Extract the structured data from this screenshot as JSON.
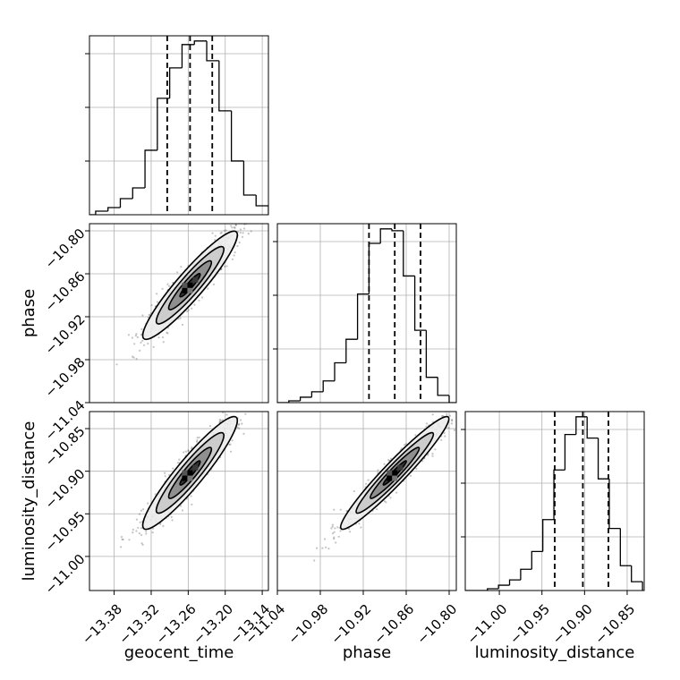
{
  "chart_data": {
    "type": "corner",
    "parameters": [
      "geocent_time",
      "phase",
      "luminosity_distance"
    ],
    "panels": [
      {
        "type": "histogram",
        "param": "geocent_time",
        "xlim": [
          -13.42,
          -13.13
        ],
        "x_ticks": [
          "-13.38",
          "-13.32",
          "-13.26",
          "-13.20",
          "-13.14"
        ],
        "x_tick_values": [
          -13.38,
          -13.32,
          -13.26,
          -13.2,
          -13.14
        ],
        "bin_edges": [
          -13.43,
          -13.41,
          -13.39,
          -13.37,
          -13.35,
          -13.33,
          -13.31,
          -13.29,
          -13.27,
          -13.25,
          -13.23,
          -13.21,
          -13.19,
          -13.17,
          -13.15,
          -13.13
        ],
        "counts": [
          0,
          2,
          4,
          9,
          15,
          36,
          65,
          82,
          95,
          97,
          86,
          58,
          30,
          11,
          5
        ],
        "quantiles": [
          -13.294,
          -13.257,
          -13.221
        ],
        "grid": true
      },
      {
        "type": "histogram",
        "param": "phase",
        "xlim": [
          -11.04,
          -10.79
        ],
        "x_ticks": [
          "-11.04",
          "-10.98",
          "-10.92",
          "-10.86",
          "-10.80"
        ],
        "x_tick_values": [
          -11.04,
          -10.98,
          -10.92,
          -10.86,
          -10.8
        ],
        "bin_edges": [
          -11.04,
          -11.024,
          -11.008,
          -10.992,
          -10.976,
          -10.96,
          -10.944,
          -10.928,
          -10.912,
          -10.896,
          -10.88,
          -10.864,
          -10.848,
          -10.832,
          -10.816,
          -10.8,
          -10.79
        ],
        "counts": [
          0,
          1,
          3,
          6,
          12,
          22,
          35,
          60,
          88,
          96,
          95,
          70,
          40,
          14,
          4,
          0
        ],
        "quantiles": [
          -10.912,
          -10.876,
          -10.84
        ],
        "grid": true
      },
      {
        "type": "histogram",
        "param": "luminosity_distance",
        "xlim": [
          -11.04,
          -10.83
        ],
        "x_ticks": [
          "-11.00",
          "-10.95",
          "-10.90",
          "-10.85"
        ],
        "x_tick_values": [
          -11.0,
          -10.95,
          -10.9,
          -10.85
        ],
        "bin_edges": [
          -11.04,
          -11.027,
          -11.014,
          -11.001,
          -10.988,
          -10.975,
          -10.962,
          -10.949,
          -10.936,
          -10.923,
          -10.91,
          -10.897,
          -10.884,
          -10.871,
          -10.858,
          -10.845,
          -10.832
        ],
        "counts": [
          0,
          0,
          1,
          3,
          6,
          12,
          22,
          40,
          68,
          88,
          98,
          86,
          63,
          35,
          14,
          5
        ],
        "quantiles": [
          -10.935,
          -10.902,
          -10.872
        ],
        "grid": true
      },
      {
        "type": "2d-density",
        "x_param": "geocent_time",
        "y_param": "phase",
        "xlim": [
          -13.42,
          -13.13
        ],
        "ylim": [
          -11.04,
          -10.79
        ],
        "y_ticks": [
          "-10.80",
          "-10.86",
          "-10.92",
          "-10.98",
          "-11.04"
        ],
        "y_tick_values": [
          -10.8,
          -10.86,
          -10.92,
          -10.98,
          -11.04
        ],
        "center": [
          -13.257,
          -10.876
        ],
        "correlation": 0.93
      },
      {
        "type": "2d-density",
        "x_param": "geocent_time",
        "y_param": "luminosity_distance",
        "xlim": [
          -13.42,
          -13.13
        ],
        "ylim": [
          -11.04,
          -10.83
        ],
        "y_ticks": [
          "-10.85",
          "-10.90",
          "-10.95",
          "-11.00"
        ],
        "y_tick_values": [
          -10.85,
          -10.9,
          -10.95,
          -11.0
        ],
        "center": [
          -13.257,
          -10.902
        ],
        "correlation": 0.93
      },
      {
        "type": "2d-density",
        "x_param": "phase",
        "y_param": "luminosity_distance",
        "xlim": [
          -11.04,
          -10.79
        ],
        "ylim": [
          -11.04,
          -10.83
        ],
        "center": [
          -10.876,
          -10.902
        ],
        "correlation": 0.96
      }
    ],
    "axis_labels": {
      "x": [
        "geocent_time",
        "phase",
        "luminosity_distance"
      ],
      "y": [
        "phase",
        "luminosity_distance"
      ]
    },
    "colors": {
      "line": "#000000",
      "grid": "#b0b0b0",
      "points": "#555555",
      "contour_fills": [
        "#ededed",
        "#c9c9c9",
        "#888888",
        "#2a2a2a"
      ]
    }
  }
}
